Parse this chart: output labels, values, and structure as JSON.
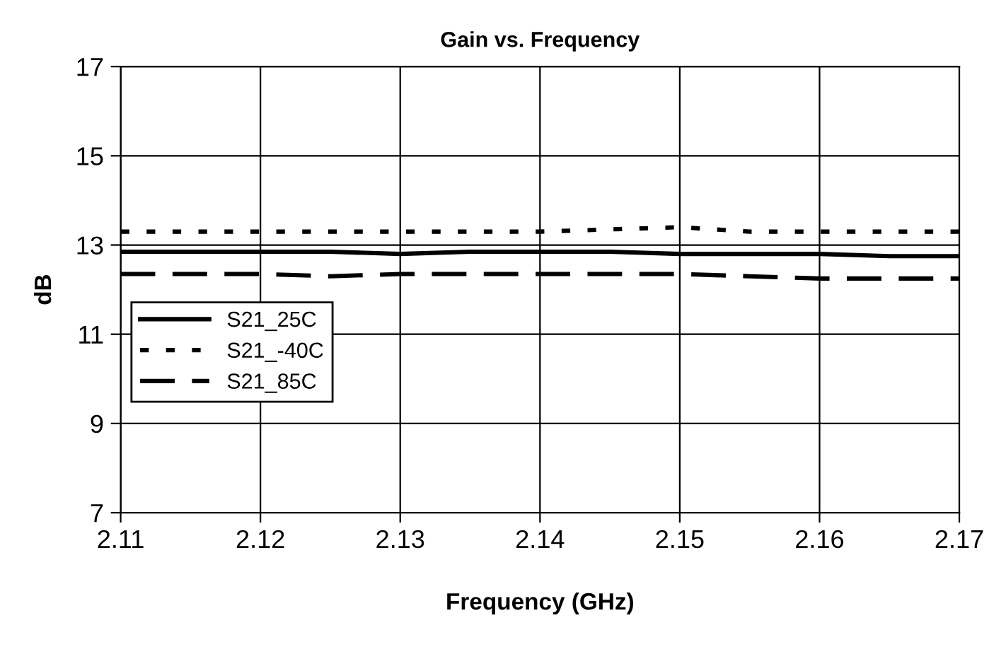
{
  "chart_data": {
    "type": "line",
    "title": "Gain vs. Frequency",
    "xlabel": "Frequency (GHz)",
    "ylabel": "dB",
    "x": [
      2.11,
      2.115,
      2.12,
      2.125,
      2.13,
      2.135,
      2.14,
      2.145,
      2.15,
      2.155,
      2.16,
      2.165,
      2.17
    ],
    "series": [
      {
        "name": "S21_25C",
        "color": "#000000",
        "line_style": "solid",
        "values": [
          12.85,
          12.85,
          12.85,
          12.85,
          12.8,
          12.85,
          12.85,
          12.85,
          12.8,
          12.8,
          12.8,
          12.75,
          12.75
        ]
      },
      {
        "name": "S21_-40C",
        "color": "#000000",
        "line_style": "dotted",
        "values": [
          13.3,
          13.3,
          13.3,
          13.3,
          13.3,
          13.3,
          13.3,
          13.35,
          13.4,
          13.3,
          13.3,
          13.3,
          13.3
        ]
      },
      {
        "name": "S21_85C",
        "color": "#000000",
        "line_style": "dashed",
        "values": [
          12.35,
          12.35,
          12.35,
          12.3,
          12.35,
          12.35,
          12.35,
          12.35,
          12.35,
          12.3,
          12.25,
          12.25,
          12.25
        ]
      }
    ],
    "xlim": [
      2.11,
      2.17
    ],
    "xticks": [
      2.11,
      2.12,
      2.13,
      2.14,
      2.15,
      2.16,
      2.17
    ],
    "ylim": [
      7,
      17
    ],
    "yticks": [
      7,
      9,
      11,
      13,
      15,
      17
    ],
    "grid": true,
    "legend": "left",
    "marker": "none"
  }
}
